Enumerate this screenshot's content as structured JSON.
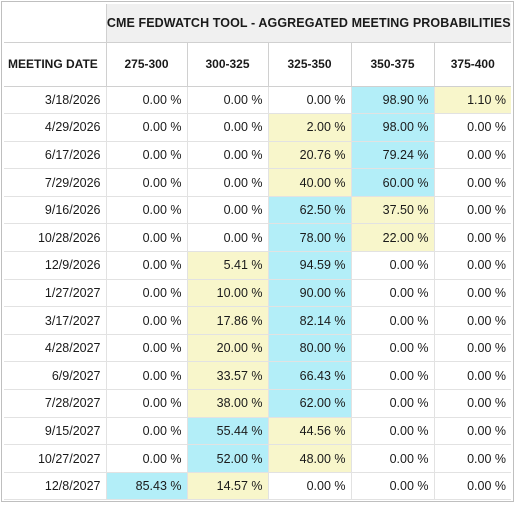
{
  "title": "CME FEDWATCH TOOL - AGGREGATED MEETING PROBABILITIES",
  "columns": [
    "MEETING DATE",
    "275-300",
    "300-325",
    "325-350",
    "350-375",
    "375-400"
  ],
  "colors": {
    "highest": "#b3eef8",
    "second": "#f8f6cb"
  },
  "rows": [
    {
      "date": "3/18/2026",
      "values": [
        "0.00 %",
        "0.00 %",
        "0.00 %",
        "98.90 %",
        "1.10 %"
      ],
      "hl": [
        "",
        "",
        "",
        "hi",
        "mid"
      ]
    },
    {
      "date": "4/29/2026",
      "values": [
        "0.00 %",
        "0.00 %",
        "2.00 %",
        "98.00 %",
        "0.00 %"
      ],
      "hl": [
        "",
        "",
        "mid",
        "hi",
        ""
      ]
    },
    {
      "date": "6/17/2026",
      "values": [
        "0.00 %",
        "0.00 %",
        "20.76 %",
        "79.24 %",
        "0.00 %"
      ],
      "hl": [
        "",
        "",
        "mid",
        "hi",
        ""
      ]
    },
    {
      "date": "7/29/2026",
      "values": [
        "0.00 %",
        "0.00 %",
        "40.00 %",
        "60.00 %",
        "0.00 %"
      ],
      "hl": [
        "",
        "",
        "mid",
        "hi",
        ""
      ]
    },
    {
      "date": "9/16/2026",
      "values": [
        "0.00 %",
        "0.00 %",
        "62.50 %",
        "37.50 %",
        "0.00 %"
      ],
      "hl": [
        "",
        "",
        "hi",
        "mid",
        ""
      ]
    },
    {
      "date": "10/28/2026",
      "values": [
        "0.00 %",
        "0.00 %",
        "78.00 %",
        "22.00 %",
        "0.00 %"
      ],
      "hl": [
        "",
        "",
        "hi",
        "mid",
        ""
      ]
    },
    {
      "date": "12/9/2026",
      "values": [
        "0.00 %",
        "5.41 %",
        "94.59 %",
        "0.00 %",
        "0.00 %"
      ],
      "hl": [
        "",
        "mid",
        "hi",
        "",
        ""
      ]
    },
    {
      "date": "1/27/2027",
      "values": [
        "0.00 %",
        "10.00 %",
        "90.00 %",
        "0.00 %",
        "0.00 %"
      ],
      "hl": [
        "",
        "mid",
        "hi",
        "",
        ""
      ]
    },
    {
      "date": "3/17/2027",
      "values": [
        "0.00 %",
        "17.86 %",
        "82.14 %",
        "0.00 %",
        "0.00 %"
      ],
      "hl": [
        "",
        "mid",
        "hi",
        "",
        ""
      ]
    },
    {
      "date": "4/28/2027",
      "values": [
        "0.00 %",
        "20.00 %",
        "80.00 %",
        "0.00 %",
        "0.00 %"
      ],
      "hl": [
        "",
        "mid",
        "hi",
        "",
        ""
      ]
    },
    {
      "date": "6/9/2027",
      "values": [
        "0.00 %",
        "33.57 %",
        "66.43 %",
        "0.00 %",
        "0.00 %"
      ],
      "hl": [
        "",
        "mid",
        "hi",
        "",
        ""
      ]
    },
    {
      "date": "7/28/2027",
      "values": [
        "0.00 %",
        "38.00 %",
        "62.00 %",
        "0.00 %",
        "0.00 %"
      ],
      "hl": [
        "",
        "mid",
        "hi",
        "",
        ""
      ]
    },
    {
      "date": "9/15/2027",
      "values": [
        "0.00 %",
        "55.44 %",
        "44.56 %",
        "0.00 %",
        "0.00 %"
      ],
      "hl": [
        "",
        "hi",
        "mid",
        "",
        ""
      ]
    },
    {
      "date": "10/27/2027",
      "values": [
        "0.00 %",
        "52.00 %",
        "48.00 %",
        "0.00 %",
        "0.00 %"
      ],
      "hl": [
        "",
        "hi",
        "mid",
        "",
        ""
      ]
    },
    {
      "date": "12/8/2027",
      "values": [
        "85.43 %",
        "14.57 %",
        "0.00 %",
        "0.00 %",
        "0.00 %"
      ],
      "hl": [
        "hi",
        "mid",
        "",
        "",
        ""
      ]
    }
  ]
}
